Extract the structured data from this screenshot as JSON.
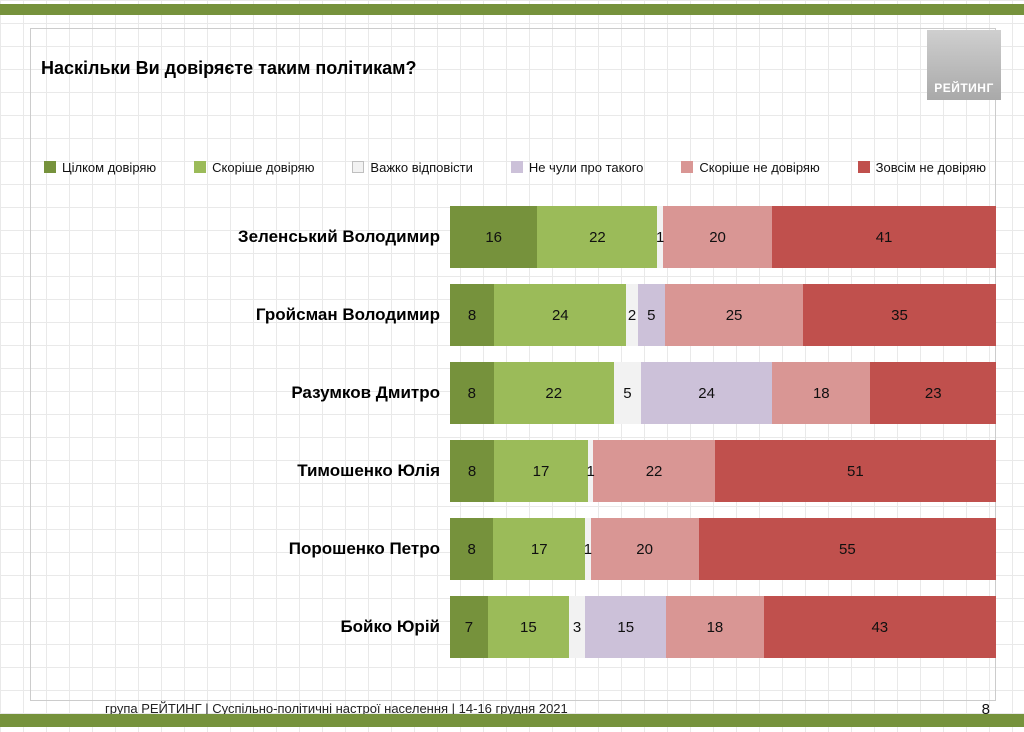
{
  "slide": {
    "title": "Наскільки Ви довіряєте таким політикам?",
    "logo_text": "РЕЙТИНГ",
    "footer": "група РЕЙТИНГ | Суспільно-політичні настрої населення | 14-16 грудня 2021",
    "page_number": "8"
  },
  "chart_data": {
    "type": "bar",
    "orientation": "horizontal",
    "stacked": true,
    "unit": "percent",
    "title": "Наскільки Ви довіряєте таким політикам?",
    "xlim": [
      0,
      100
    ],
    "grid": true,
    "legend_position": "top",
    "categories": [
      "Зеленський Володимир",
      "Гройсман Володимир",
      "Разумков Дмитро",
      "Тимошенко Юлія",
      "Порошенко Петро",
      "Бойко Юрій"
    ],
    "series": [
      {
        "name": "Цілком довіряю",
        "color": "#76923C",
        "values": [
          16,
          8,
          8,
          8,
          8,
          7
        ]
      },
      {
        "name": "Скоріше довіряю",
        "color": "#9BBB59",
        "values": [
          22,
          24,
          22,
          17,
          17,
          15
        ]
      },
      {
        "name": "Важко відповісти",
        "color": "#F2F2F2",
        "swatch_border": "#bfbfbf",
        "values": [
          1,
          2,
          5,
          1,
          1,
          3
        ]
      },
      {
        "name": "Не чули про такого",
        "color": "#CCC1D9",
        "values": [
          0,
          5,
          24,
          0,
          0,
          15
        ]
      },
      {
        "name": "Скоріше не довіряю",
        "color": "#D99694",
        "values": [
          20,
          25,
          18,
          22,
          20,
          18
        ]
      },
      {
        "name": "Зовсім не довіряю",
        "color": "#C0504D",
        "values": [
          41,
          35,
          23,
          51,
          55,
          43
        ]
      }
    ]
  }
}
